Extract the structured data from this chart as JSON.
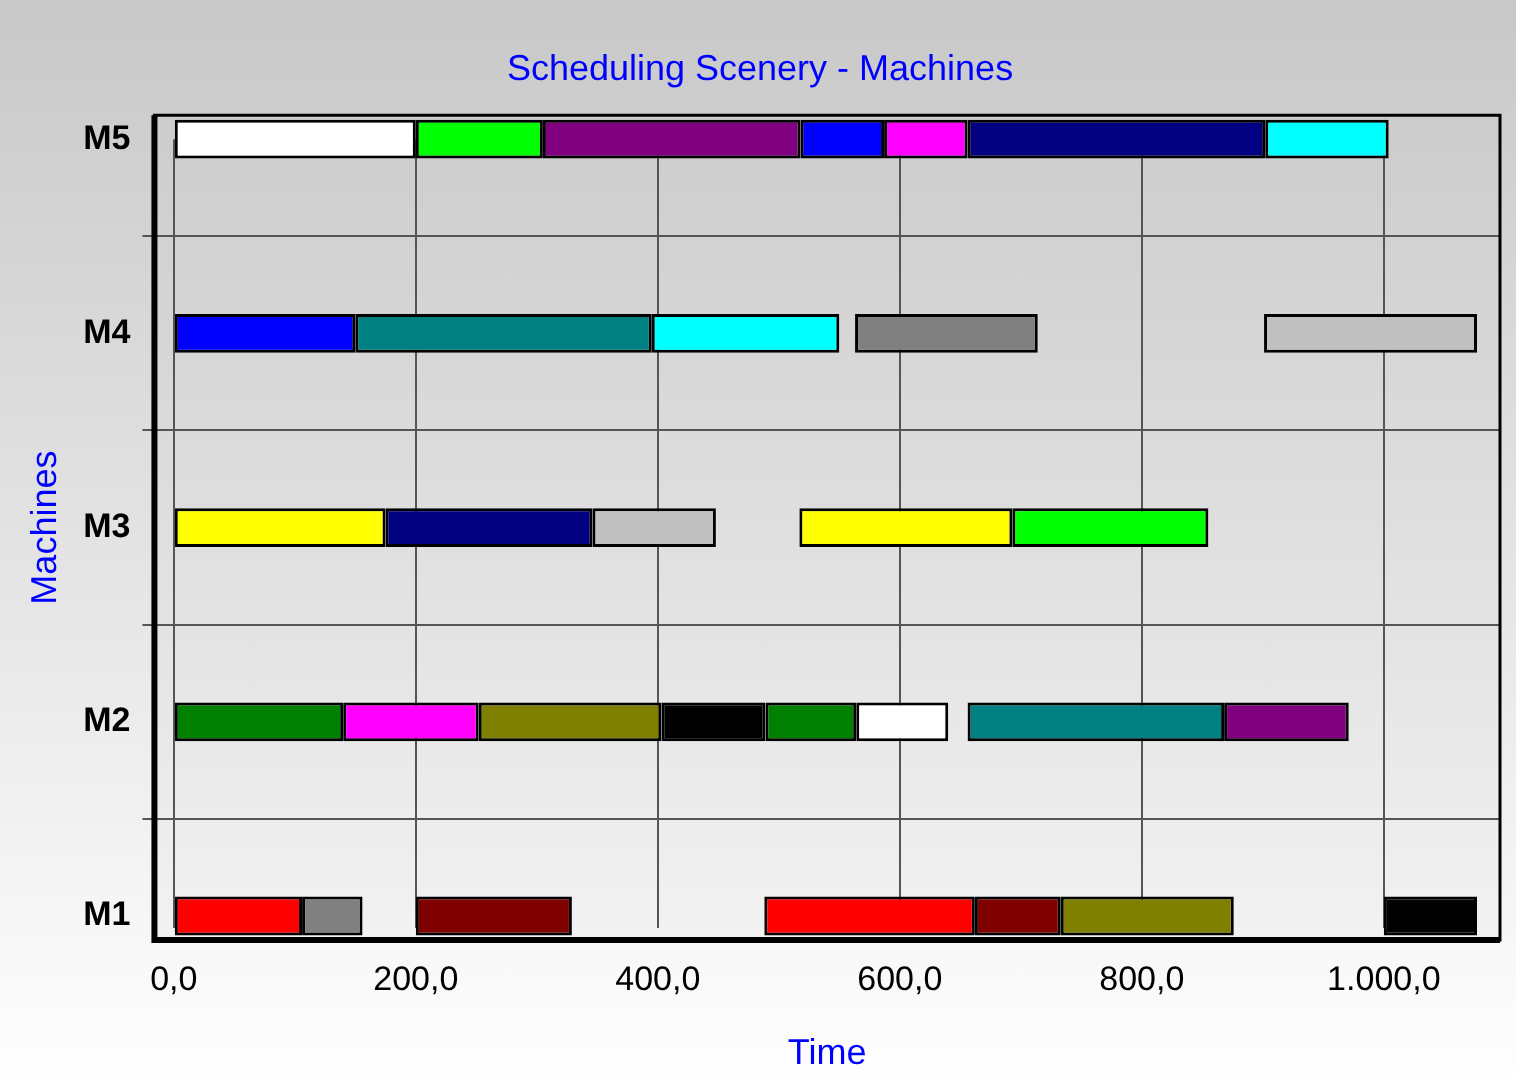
{
  "chart_data": {
    "type": "bar",
    "orientation": "horizontal",
    "title": "Scheduling Scenery - Machines",
    "xlabel": "Time",
    "ylabel": "Machines",
    "categories": [
      "M5",
      "M4",
      "M3",
      "M2",
      "M1"
    ],
    "xlim": [
      -16,
      1096
    ],
    "xticks": [
      {
        "value": 0,
        "label": "0,0"
      },
      {
        "value": 200,
        "label": "200,0"
      },
      {
        "value": 400,
        "label": "400,0"
      },
      {
        "value": 600,
        "label": "600,0"
      },
      {
        "value": 800,
        "label": "800,0"
      },
      {
        "value": 1000,
        "label": "1.000,0"
      }
    ],
    "grid": true,
    "legend": false,
    "series": [
      {
        "base": [
          0,
          0,
          0,
          0,
          0
        ],
        "values": [
          200,
          150,
          175,
          140,
          106
        ],
        "colors": [
          "#ffffff",
          "#0000ff",
          "#ffff00",
          "#008000",
          "#ff0000"
        ]
      },
      {
        "base": [
          200,
          150,
          175,
          140,
          106
        ],
        "values": [
          105,
          245,
          171,
          112,
          50
        ],
        "colors": [
          "#00ff00",
          "#008080",
          "#000080",
          "#ff00ff",
          "#808080"
        ]
      },
      {
        "base": [
          305,
          395,
          346,
          252,
          200
        ],
        "values": [
          213,
          155,
          102,
          151,
          129
        ],
        "colors": [
          "#800080",
          "#00ffff",
          "#c0c0c0",
          "#808000",
          "#800000"
        ]
      },
      {
        "base": [
          518,
          563,
          517,
          403,
          488
        ],
        "values": [
          69,
          151,
          176,
          86,
          174
        ],
        "colors": [
          "#0000ff",
          "#808080",
          "#ffff00",
          "#000000",
          "#ff0000"
        ]
      },
      {
        "base": [
          587,
          901,
          693,
          489,
          662
        ],
        "values": [
          69,
          176,
          162,
          75,
          71
        ],
        "colors": [
          "#ff00ff",
          "#c0c0c0",
          "#00ff00",
          "#008000",
          "#800000"
        ]
      },
      {
        "base": [
          656,
          null,
          null,
          564,
          733
        ],
        "values": [
          246,
          null,
          null,
          76,
          143
        ],
        "colors": [
          "#000080",
          null,
          null,
          "#ffffff",
          "#808000"
        ]
      },
      {
        "base": [
          902,
          null,
          null,
          656,
          1000
        ],
        "values": [
          102,
          null,
          null,
          212,
          77
        ],
        "colors": [
          "#00ffff",
          null,
          null,
          "#008080",
          "#000000"
        ]
      },
      {
        "base": [
          null,
          null,
          null,
          868,
          null
        ],
        "values": [
          null,
          null,
          null,
          103,
          null
        ],
        "colors": [
          null,
          null,
          null,
          "#800080",
          null
        ]
      }
    ]
  }
}
